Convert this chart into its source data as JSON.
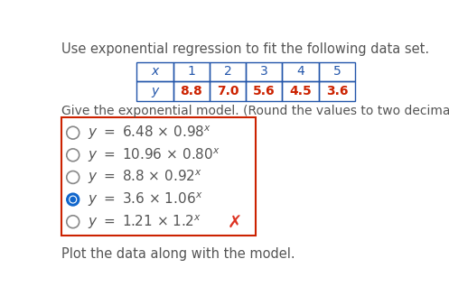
{
  "title_text": "Use exponential regression to fit the following data set.",
  "col_labels": [
    "x",
    "1",
    "2",
    "3",
    "4",
    "5"
  ],
  "row2_labels": [
    "y",
    "8.8",
    "7.0",
    "5.6",
    "4.5",
    "3.6"
  ],
  "subtitle": "Give the exponential model. (Round the values to two decimal places.)",
  "options_base": [
    "y = 6.48 × 0.98",
    "y = 10.96 × 0.80",
    "y = 8.8 × 0.92",
    "y = 3.6 × 1.06",
    "y = 1.21 × 1.2"
  ],
  "selected_option": 3,
  "footer_text": "Plot the data along with the model.",
  "bg_color": "#ffffff",
  "text_color": "#555555",
  "table_border_color": "#2255aa",
  "table_header_color": "#2255aa",
  "table_data_color": "#cc2200",
  "option_box_border": "#cc2200",
  "radio_selected_color": "#1166cc",
  "radio_unselected_color": "#888888",
  "x_mark_color": "#dd3322",
  "title_fontsize": 10.5,
  "subtitle_fontsize": 10.0,
  "option_fontsize": 11.0,
  "footer_fontsize": 10.5,
  "table_fontsize": 10.0
}
